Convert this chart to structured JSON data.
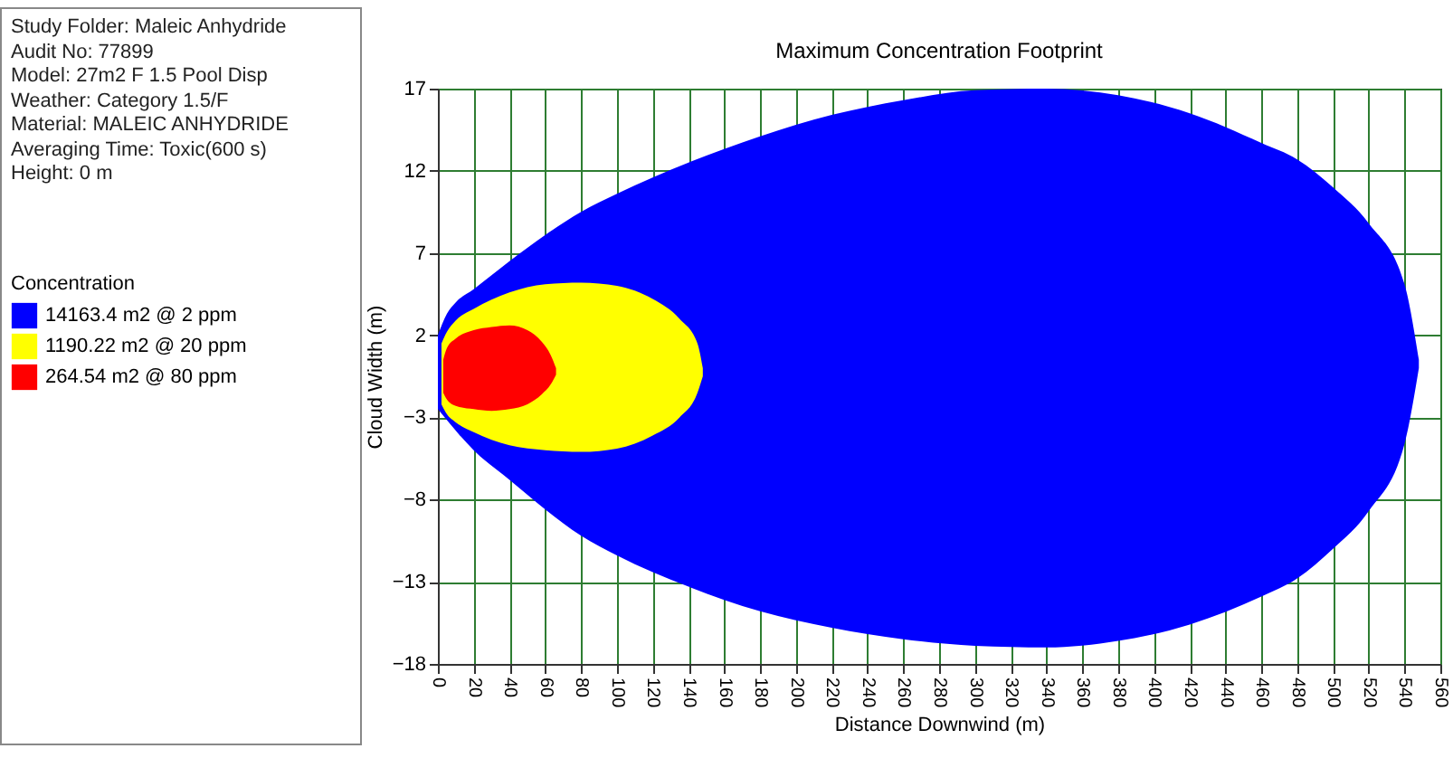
{
  "chart_data": {
    "type": "area",
    "title": "Maximum Concentration Footprint",
    "xlabel": "Distance Downwind (m)",
    "ylabel": "Cloud Width (m)",
    "legend_title": "Concentration",
    "annotations": [
      "Study Folder: Maleic Anhydride",
      "Audit No: 77899",
      "Model: 27m2 F 1.5 Pool Disp",
      "Weather: Category 1.5/F",
      "Material: MALEIC ANHYDRIDE",
      "Averaging Time: Toxic(600 s)",
      "Height: 0 m"
    ],
    "series": [
      {
        "name": "14163.4 m2 @ 2 ppm",
        "color": "#0000ff",
        "x": [
          0,
          5,
          10,
          20,
          40,
          60,
          80,
          100,
          140,
          180,
          220,
          260,
          300,
          340,
          380,
          420,
          460,
          480,
          500,
          520,
          540,
          548
        ],
        "values": [
          2.0,
          3.3,
          4.0,
          4.8,
          6.5,
          8.1,
          9.5,
          10.6,
          12.5,
          14.1,
          15.4,
          16.3,
          16.9,
          17.0,
          16.6,
          15.5,
          13.7,
          12.7,
          11.0,
          8.8,
          5.1,
          0.5
        ]
      },
      {
        "color": "#0000ff",
        "x": [
          0,
          20,
          40,
          60,
          80,
          100,
          140,
          180,
          220,
          260,
          300,
          340,
          380,
          420,
          460,
          480,
          500,
          520,
          540,
          548
        ],
        "values": [
          -2.5,
          -5.0,
          -6.8,
          -8.6,
          -10.2,
          -11.4,
          -13.3,
          -14.8,
          -15.8,
          -16.5,
          -16.9,
          -17.0,
          -16.6,
          -15.6,
          -13.9,
          -12.8,
          -11.0,
          -8.7,
          -4.6,
          0.0
        ]
      },
      {
        "name": "1190.22 m2 @ 20 ppm",
        "color": "#ffff00",
        "x": [
          2,
          5,
          10,
          20,
          40,
          60,
          80,
          100,
          120,
          135,
          145,
          148
        ],
        "values": [
          1.5,
          2.2,
          2.9,
          3.6,
          4.6,
          5.1,
          5.2,
          5.0,
          4.2,
          3.0,
          1.5,
          0.0
        ]
      },
      {
        "color": "#ffff00",
        "x": [
          2,
          5,
          10,
          20,
          40,
          60,
          80,
          100,
          120,
          135,
          145,
          148
        ],
        "values": [
          -2.2,
          -2.8,
          -3.3,
          -3.9,
          -4.7,
          -5.0,
          -5.1,
          -4.9,
          -4.1,
          -3.0,
          -1.5,
          -0.5
        ]
      },
      {
        "name": "264.54 m2 @ 80 ppm",
        "color": "#ff0000",
        "x": [
          3,
          5,
          10,
          20,
          30,
          40,
          50,
          58,
          63,
          66
        ],
        "values": [
          0.5,
          1.2,
          1.8,
          2.3,
          2.5,
          2.6,
          2.3,
          1.6,
          0.8,
          0.0
        ]
      },
      {
        "color": "#ff0000",
        "x": [
          3,
          5,
          10,
          20,
          30,
          40,
          50,
          58,
          63,
          66
        ],
        "values": [
          -1.5,
          -1.9,
          -2.3,
          -2.5,
          -2.6,
          -2.5,
          -2.2,
          -1.6,
          -1.0,
          -0.4
        ]
      }
    ],
    "xlim": [
      0,
      560
    ],
    "xticks": [
      0,
      20,
      40,
      60,
      80,
      100,
      120,
      140,
      160,
      180,
      200,
      220,
      240,
      260,
      280,
      300,
      320,
      340,
      360,
      380,
      400,
      420,
      440,
      460,
      480,
      500,
      520,
      540,
      560
    ],
    "ylim": [
      -18,
      17
    ],
    "yticks": [
      17,
      12,
      7,
      2,
      -3,
      -8,
      -13,
      -18
    ],
    "grid": true,
    "legend": "left"
  }
}
